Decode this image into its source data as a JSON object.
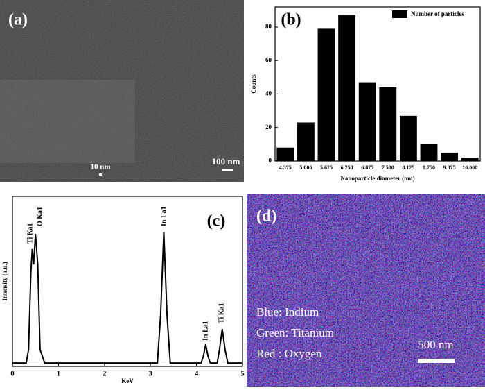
{
  "panel_a": {
    "label": "(a)",
    "scale_bars": [
      "10 nm",
      "100 nm"
    ]
  },
  "chart_data": [
    {
      "type": "bar",
      "label": "(b)",
      "xlabel": "Nanoparticle diameter (nm)",
      "ylabel": "Counts",
      "categories": [
        "4.375",
        "5.000",
        "5.625",
        "6.250",
        "6.875",
        "7.500",
        "8.125",
        "8.750",
        "9.375",
        "10.000"
      ],
      "series": [
        {
          "name": "Number of particles",
          "color": "#000000",
          "values": [
            8,
            23,
            79,
            87,
            47,
            44,
            27,
            10,
            5,
            2
          ]
        }
      ],
      "ylim": [
        0,
        92
      ],
      "yticks": [
        0,
        20,
        40,
        60,
        80
      ],
      "legend": "upper right"
    },
    {
      "type": "line",
      "label": "(c)",
      "xlabel": "KeV",
      "ylabel": "Intensity (a.u.)",
      "x": [
        0,
        0.3,
        0.35,
        0.4,
        0.43,
        0.46,
        0.5,
        0.55,
        0.6,
        0.7,
        3.15,
        3.22,
        3.29,
        3.36,
        3.43,
        4.1,
        4.15,
        4.2,
        4.25,
        4.3,
        4.45,
        4.5,
        4.56,
        4.62,
        4.68,
        5
      ],
      "series": [
        {
          "color": "#000000",
          "values": [
            0.02,
            0.02,
            0.1,
            0.55,
            0.69,
            0.6,
            0.78,
            0.6,
            0.1,
            0.02,
            0.02,
            0.3,
            0.79,
            0.3,
            0.02,
            0.02,
            0.06,
            0.13,
            0.06,
            0.02,
            0.02,
            0.1,
            0.22,
            0.1,
            0.02,
            0.02
          ]
        }
      ],
      "xlim": [
        0,
        5
      ],
      "xticks": [
        0,
        1,
        2,
        3,
        4,
        5
      ],
      "ylim": [
        0,
        1
      ],
      "peak_labels": [
        "Ti Ka1",
        "O Ka1",
        "In La1",
        "In La1",
        "Ti Ka1"
      ]
    }
  ],
  "panel_d": {
    "label": "(d)",
    "legend": [
      "Blue: Indium",
      "Green: Titanium",
      "Red : Oxygen"
    ],
    "scale_bar": "500 nm"
  }
}
